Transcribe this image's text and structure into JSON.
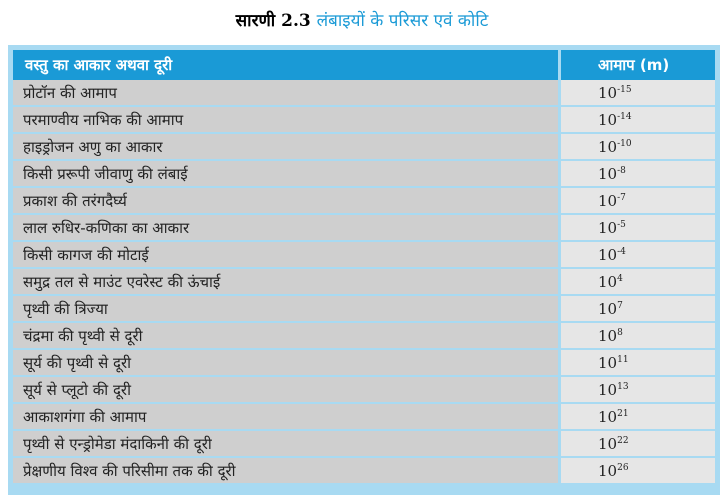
{
  "title": {
    "label": "सारणी 2.3",
    "text": "लंबाइयों के परिसर एवं कोटि"
  },
  "table": {
    "headers": [
      "वस्तु का आकार अथवा दूरी",
      "आमाप (m)"
    ],
    "rows": [
      {
        "label": "प्रोटॉन की आमाप",
        "base": "10",
        "exp": "-15"
      },
      {
        "label": "परमाण्वीय नाभिक की आमाप",
        "base": "10",
        "exp": "-14"
      },
      {
        "label": "हाइड्रोजन अणु का आकार",
        "base": "10",
        "exp": "-10"
      },
      {
        "label": "किसी प्ररूपी जीवाणु की लंबाई",
        "base": "10",
        "exp": "-8"
      },
      {
        "label": "प्रकाश की तरंगदैर्घ्य",
        "base": "10",
        "exp": "-7"
      },
      {
        "label": "लाल रुधिर-कणिका का आकार",
        "base": "10",
        "exp": "-5"
      },
      {
        "label": "किसी कागज की मोटाई",
        "base": "10",
        "exp": "-4"
      },
      {
        "label": "समुद्र तल से माउंट एवरेस्ट की ऊंचाई",
        "base": "10",
        "exp": "4"
      },
      {
        "label": "पृथ्वी की त्रिज्या",
        "base": "10",
        "exp": "7"
      },
      {
        "label": "चंद्रमा की पृथ्वी से दूरी",
        "base": "10",
        "exp": "8"
      },
      {
        "label": "सूर्य की पृथ्वी से दूरी",
        "base": "10",
        "exp": "11"
      },
      {
        "label": "सूर्य से प्लूटो की दूरी",
        "base": "10",
        "exp": "13"
      },
      {
        "label": "आकाशगंगा की आमाप",
        "base": "10",
        "exp": "21"
      },
      {
        "label": "पृथ्वी से एन्ड्रोमेडा मंदाकिनी की दूरी",
        "base": "10",
        "exp": "22"
      },
      {
        "label": "प्रेक्षणीय विश्व की परिसीमा तक की दूरी",
        "base": "10",
        "exp": "26"
      }
    ]
  },
  "colors": {
    "accent": "#1a9ad6",
    "frame": "#a8daf2",
    "cell_left": "#cfcfcf",
    "cell_right": "#e6e6e6"
  }
}
